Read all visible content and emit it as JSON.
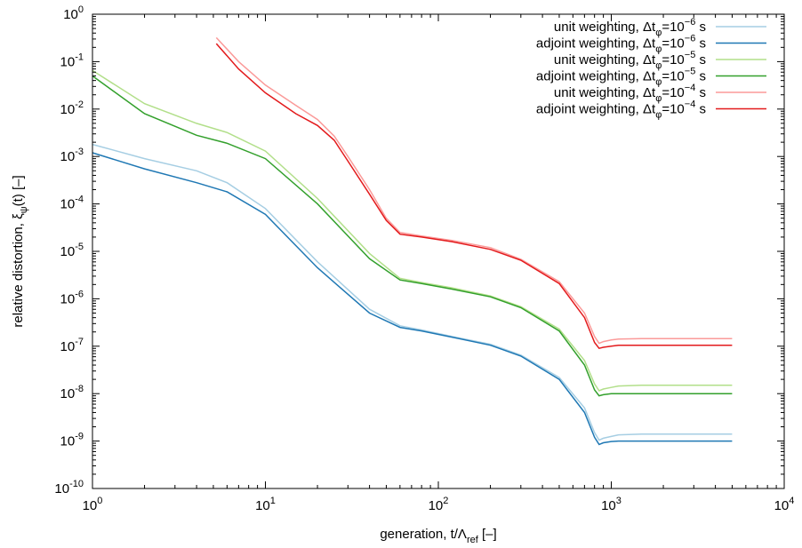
{
  "chart_data": {
    "type": "line",
    "xscale": "log",
    "yscale": "log",
    "xlim": [
      1,
      10000
    ],
    "ylim": [
      1e-10,
      1
    ],
    "x_ticks": [
      {
        "base": "10",
        "exp": "0"
      },
      {
        "base": "10",
        "exp": "1"
      },
      {
        "base": "10",
        "exp": "2"
      },
      {
        "base": "10",
        "exp": "3"
      },
      {
        "base": "10",
        "exp": "4"
      }
    ],
    "y_ticks": [
      {
        "base": "10",
        "exp": "0"
      },
      {
        "base": "10",
        "exp": "-1"
      },
      {
        "base": "10",
        "exp": "-2"
      },
      {
        "base": "10",
        "exp": "-3"
      },
      {
        "base": "10",
        "exp": "-4"
      },
      {
        "base": "10",
        "exp": "-5"
      },
      {
        "base": "10",
        "exp": "-6"
      },
      {
        "base": "10",
        "exp": "-7"
      },
      {
        "base": "10",
        "exp": "-8"
      },
      {
        "base": "10",
        "exp": "-9"
      },
      {
        "base": "10",
        "exp": "-10"
      }
    ],
    "xlabel": {
      "main": "generation, t/Λ",
      "sub": "ref",
      "tail": " [–]"
    },
    "ylabel": {
      "main": "relative distortion, ξ",
      "sub": "ψ",
      "tail": "(t) [–]"
    },
    "grid": false,
    "legend_position": "top-right",
    "series": [
      {
        "legend": {
          "prefix": "unit weighting, Δt",
          "sub": "φ",
          "mid": "=10",
          "sup": "−6",
          "suffix": " s"
        },
        "color": "#a6cee3",
        "x": [
          1,
          2,
          4,
          6,
          10,
          20,
          40,
          60,
          80,
          120,
          200,
          300,
          500,
          700,
          800,
          850,
          900,
          1000,
          1100,
          1500,
          2000,
          5000
        ],
        "y": [
          0.0018,
          0.0009,
          0.0005,
          0.00028,
          8e-05,
          6e-06,
          6e-07,
          2.7e-07,
          2.2e-07,
          1.6e-07,
          1.1e-07,
          6.5e-08,
          2.2e-08,
          5e-09,
          1.5e-09,
          1.05e-09,
          1.15e-09,
          1.25e-09,
          1.35e-09,
          1.4e-09,
          1.4e-09,
          1.4e-09
        ]
      },
      {
        "legend": {
          "prefix": "adjoint weighting, Δt",
          "sub": "φ",
          "mid": "=10",
          "sup": "−6",
          "suffix": " s"
        },
        "color": "#1f78b4",
        "x": [
          1,
          2,
          4,
          6,
          10,
          20,
          40,
          60,
          80,
          120,
          200,
          300,
          500,
          700,
          800,
          850,
          900,
          1000,
          1100,
          1500,
          2000,
          5000
        ],
        "y": [
          0.0012,
          0.00055,
          0.00028,
          0.00018,
          6e-05,
          4.5e-06,
          5e-07,
          2.5e-07,
          2.1e-07,
          1.55e-07,
          1.05e-07,
          6.2e-08,
          2e-08,
          4e-09,
          1.2e-09,
          8.5e-10,
          9.2e-10,
          9.8e-10,
          1e-09,
          1e-09,
          1e-09,
          1e-09
        ]
      },
      {
        "legend": {
          "prefix": "unit weighting, Δt",
          "sub": "φ",
          "mid": "=10",
          "sup": "−5",
          "suffix": " s"
        },
        "color": "#b2df8a",
        "x": [
          1,
          2,
          4,
          6,
          10,
          20,
          40,
          60,
          80,
          120,
          200,
          300,
          500,
          700,
          800,
          850,
          900,
          1000,
          1100,
          1500,
          2000,
          5000
        ],
        "y": [
          0.065,
          0.013,
          0.005,
          0.0032,
          0.0013,
          0.00013,
          9e-06,
          2.7e-06,
          2.2e-06,
          1.7e-06,
          1.15e-06,
          6.8e-07,
          2.3e-07,
          5e-08,
          1.6e-08,
          1.15e-08,
          1.25e-08,
          1.35e-08,
          1.45e-08,
          1.5e-08,
          1.5e-08,
          1.5e-08
        ]
      },
      {
        "legend": {
          "prefix": "adjoint weighting, Δt",
          "sub": "φ",
          "mid": "=10",
          "sup": "−5",
          "suffix": " s"
        },
        "color": "#33a02c",
        "x": [
          1,
          2,
          4,
          6,
          10,
          20,
          40,
          60,
          80,
          120,
          200,
          300,
          500,
          700,
          800,
          850,
          900,
          1000,
          1100,
          1500,
          2000,
          5000
        ],
        "y": [
          0.05,
          0.008,
          0.0028,
          0.0019,
          0.0009,
          0.0001,
          7e-06,
          2.5e-06,
          2.1e-06,
          1.6e-06,
          1.1e-06,
          6.5e-07,
          2.1e-07,
          4e-08,
          1.2e-08,
          9e-09,
          9.5e-09,
          1e-08,
          1e-08,
          1e-08,
          1e-08,
          1e-08
        ]
      },
      {
        "legend": {
          "prefix": "unit weighting, Δt",
          "sub": "φ",
          "mid": "=10",
          "sup": "−4",
          "suffix": " s"
        },
        "color": "#fb9a99",
        "x": [
          5.2,
          7,
          10,
          15,
          20,
          25,
          30,
          40,
          50,
          60,
          80,
          120,
          200,
          300,
          500,
          700,
          800,
          850,
          900,
          1000,
          1100,
          1500,
          2000,
          5000
        ],
        "y": [
          0.32,
          0.1,
          0.032,
          0.012,
          0.006,
          0.0027,
          0.001,
          0.0002,
          5e-05,
          2.5e-05,
          2.1e-05,
          1.7e-05,
          1.2e-05,
          6.8e-06,
          2.3e-06,
          5e-07,
          1.6e-07,
          1.15e-07,
          1.25e-07,
          1.35e-07,
          1.42e-07,
          1.45e-07,
          1.45e-07,
          1.45e-07
        ]
      },
      {
        "legend": {
          "prefix": "adjoint weighting, Δt",
          "sub": "φ",
          "mid": "=10",
          "sup": "−4",
          "suffix": " s"
        },
        "color": "#e31a1c",
        "x": [
          5.2,
          7,
          10,
          15,
          20,
          25,
          30,
          40,
          50,
          60,
          80,
          120,
          200,
          300,
          500,
          700,
          800,
          850,
          900,
          1000,
          1100,
          1500,
          2000,
          5000
        ],
        "y": [
          0.24,
          0.07,
          0.022,
          0.008,
          0.0045,
          0.0022,
          0.0008,
          0.00016,
          4.5e-05,
          2.3e-05,
          2e-05,
          1.6e-05,
          1.1e-05,
          6.5e-06,
          2.1e-06,
          4e-07,
          1.2e-07,
          9e-08,
          9.5e-08,
          1e-07,
          1.05e-07,
          1.05e-07,
          1.05e-07,
          1.05e-07
        ]
      }
    ]
  }
}
